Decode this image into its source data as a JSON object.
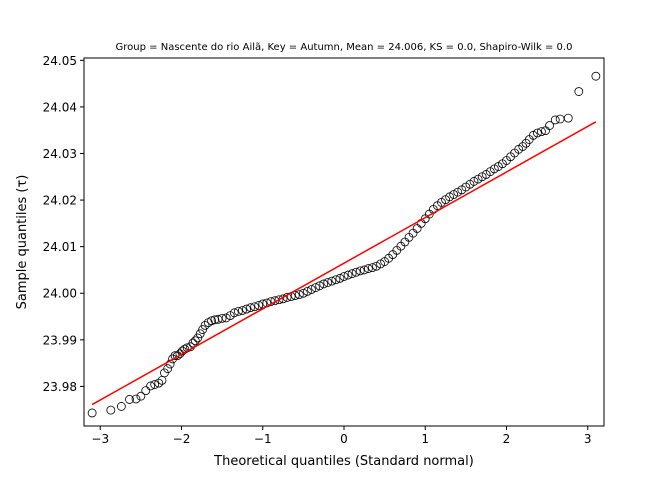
{
  "chart_data": {
    "type": "scatter",
    "title": "Group = Nascente do rio Ailã, Key = Autumn, Mean = 24.006, KS = 0.0, Shapiro-Wilk = 0.0",
    "xlabel": "Theoretical quantiles (Standard normal)",
    "ylabel": "Sample quantiles (τ)",
    "xlim": [
      -3.2,
      3.2
    ],
    "ylim": [
      23.9715,
      24.0505
    ],
    "xticks": [
      -3,
      -2,
      -1,
      0,
      1,
      2,
      3
    ],
    "xtick_labels": [
      "−3",
      "−2",
      "−1",
      "0",
      "1",
      "2",
      "3"
    ],
    "yticks": [
      23.98,
      23.99,
      24.0,
      24.01,
      24.02,
      24.03,
      24.04,
      24.05
    ],
    "ytick_labels": [
      "23.98",
      "23.99",
      "24.00",
      "24.01",
      "24.02",
      "24.03",
      "24.04",
      "24.05"
    ],
    "grid": false,
    "series": [
      {
        "kind": "points",
        "marker": "open-circle",
        "color": "#000000",
        "points": [
          [
            -3.1,
            23.9743
          ],
          [
            -2.87,
            23.9749
          ],
          [
            -2.74,
            23.9757
          ],
          [
            -2.64,
            23.9772
          ],
          [
            -2.56,
            23.9773
          ],
          [
            -2.5,
            23.9779
          ],
          [
            -2.44,
            23.9791
          ],
          [
            -2.38,
            23.9801
          ],
          [
            -2.33,
            23.9804
          ],
          [
            -2.28,
            23.9807
          ],
          [
            -2.24,
            23.9813
          ],
          [
            -2.21,
            23.9829
          ],
          [
            -2.17,
            23.9838
          ],
          [
            -2.14,
            23.9848
          ],
          [
            -2.11,
            23.9859
          ],
          [
            -2.08,
            23.9866
          ],
          [
            -2.05,
            23.9866
          ],
          [
            -2.02,
            23.987
          ],
          [
            -1.99,
            23.9876
          ],
          [
            -1.96,
            23.988
          ],
          [
            -1.93,
            23.9883
          ],
          [
            -1.89,
            23.9885
          ],
          [
            -1.86,
            23.9893
          ],
          [
            -1.83,
            23.9898
          ],
          [
            -1.8,
            23.9904
          ],
          [
            -1.77,
            23.9913
          ],
          [
            -1.74,
            23.9922
          ],
          [
            -1.71,
            23.9931
          ],
          [
            -1.67,
            23.9937
          ],
          [
            -1.63,
            23.9941
          ],
          [
            -1.59,
            23.9943
          ],
          [
            -1.55,
            23.9944
          ],
          [
            -1.5,
            23.9946
          ],
          [
            -1.45,
            23.9947
          ],
          [
            -1.4,
            23.9952
          ],
          [
            -1.35,
            23.9958
          ],
          [
            -1.3,
            23.9961
          ],
          [
            -1.25,
            23.9963
          ],
          [
            -1.2,
            23.9966
          ],
          [
            -1.15,
            23.9969
          ],
          [
            -1.1,
            23.9971
          ],
          [
            -1.05,
            23.9974
          ],
          [
            -1.0,
            23.9977
          ],
          [
            -0.95,
            23.9979
          ],
          [
            -0.9,
            23.9982
          ],
          [
            -0.85,
            23.9984
          ],
          [
            -0.8,
            23.9986
          ],
          [
            -0.75,
            23.9988
          ],
          [
            -0.7,
            23.9991
          ],
          [
            -0.65,
            23.9993
          ],
          [
            -0.6,
            23.9995
          ],
          [
            -0.55,
            23.9997
          ],
          [
            -0.5,
            24.0
          ],
          [
            -0.45,
            24.0004
          ],
          [
            -0.4,
            24.0008
          ],
          [
            -0.35,
            24.0012
          ],
          [
            -0.3,
            24.0016
          ],
          [
            -0.25,
            24.002
          ],
          [
            -0.2,
            24.0023
          ],
          [
            -0.15,
            24.0026
          ],
          [
            -0.1,
            24.0029
          ],
          [
            -0.05,
            24.0032
          ],
          [
            0.0,
            24.0036
          ],
          [
            0.05,
            24.0039
          ],
          [
            0.1,
            24.0042
          ],
          [
            0.15,
            24.0045
          ],
          [
            0.2,
            24.0048
          ],
          [
            0.25,
            24.005
          ],
          [
            0.3,
            24.0053
          ],
          [
            0.35,
            24.0055
          ],
          [
            0.4,
            24.0058
          ],
          [
            0.45,
            24.0063
          ],
          [
            0.5,
            24.0068
          ],
          [
            0.55,
            24.0075
          ],
          [
            0.6,
            24.0083
          ],
          [
            0.65,
            24.0092
          ],
          [
            0.7,
            24.0101
          ],
          [
            0.75,
            24.011
          ],
          [
            0.8,
            24.012
          ],
          [
            0.85,
            24.0129
          ],
          [
            0.9,
            24.0139
          ],
          [
            0.95,
            24.015
          ],
          [
            1.0,
            24.016
          ],
          [
            1.05,
            24.017
          ],
          [
            1.1,
            24.018
          ],
          [
            1.15,
            24.0188
          ],
          [
            1.2,
            24.0195
          ],
          [
            1.25,
            24.0201
          ],
          [
            1.3,
            24.0207
          ],
          [
            1.35,
            24.0212
          ],
          [
            1.4,
            24.0217
          ],
          [
            1.45,
            24.0222
          ],
          [
            1.5,
            24.0228
          ],
          [
            1.55,
            24.0234
          ],
          [
            1.6,
            24.024
          ],
          [
            1.65,
            24.0245
          ],
          [
            1.7,
            24.025
          ],
          [
            1.75,
            24.0255
          ],
          [
            1.8,
            24.0261
          ],
          [
            1.85,
            24.0267
          ],
          [
            1.9,
            24.0272
          ],
          [
            1.95,
            24.0278
          ],
          [
            2.0,
            24.0285
          ],
          [
            2.05,
            24.0293
          ],
          [
            2.1,
            24.0301
          ],
          [
            2.15,
            24.0309
          ],
          [
            2.2,
            24.0315
          ],
          [
            2.24,
            24.0322
          ],
          [
            2.28,
            24.033
          ],
          [
            2.33,
            24.0339
          ],
          [
            2.38,
            24.0344
          ],
          [
            2.43,
            24.0347
          ],
          [
            2.48,
            24.0349
          ],
          [
            2.53,
            24.036
          ],
          [
            2.6,
            24.0372
          ],
          [
            2.66,
            24.0374
          ],
          [
            2.76,
            24.0376
          ],
          [
            2.89,
            24.0433
          ],
          [
            3.1,
            24.0466
          ]
        ]
      },
      {
        "kind": "line",
        "color": "#ff0000",
        "points": [
          [
            -3.1,
            23.9761
          ],
          [
            3.1,
            24.0368
          ]
        ]
      }
    ]
  }
}
